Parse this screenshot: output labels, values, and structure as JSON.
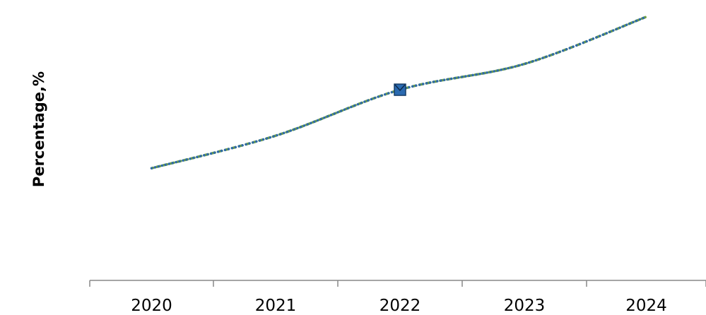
{
  "chart_data": {
    "type": "line",
    "xlabel": "",
    "ylabel": "Percentage,%",
    "categories": [
      "2020",
      "2021",
      "2022",
      "2023",
      "2024"
    ],
    "series": [
      {
        "values": [
          10.0,
          12.9,
          17.0,
          19.3,
          23.5
        ],
        "highlight_index": 2
      }
    ],
    "ylim": [
      0,
      25
    ],
    "grid": false,
    "legend": "none",
    "colors": {
      "line_dots": "#2f6aa8",
      "line_dashes": "#6fa043",
      "marker_fill": "#2a6ab0",
      "marker_stroke": "#163c66",
      "axis": "#888888"
    }
  }
}
